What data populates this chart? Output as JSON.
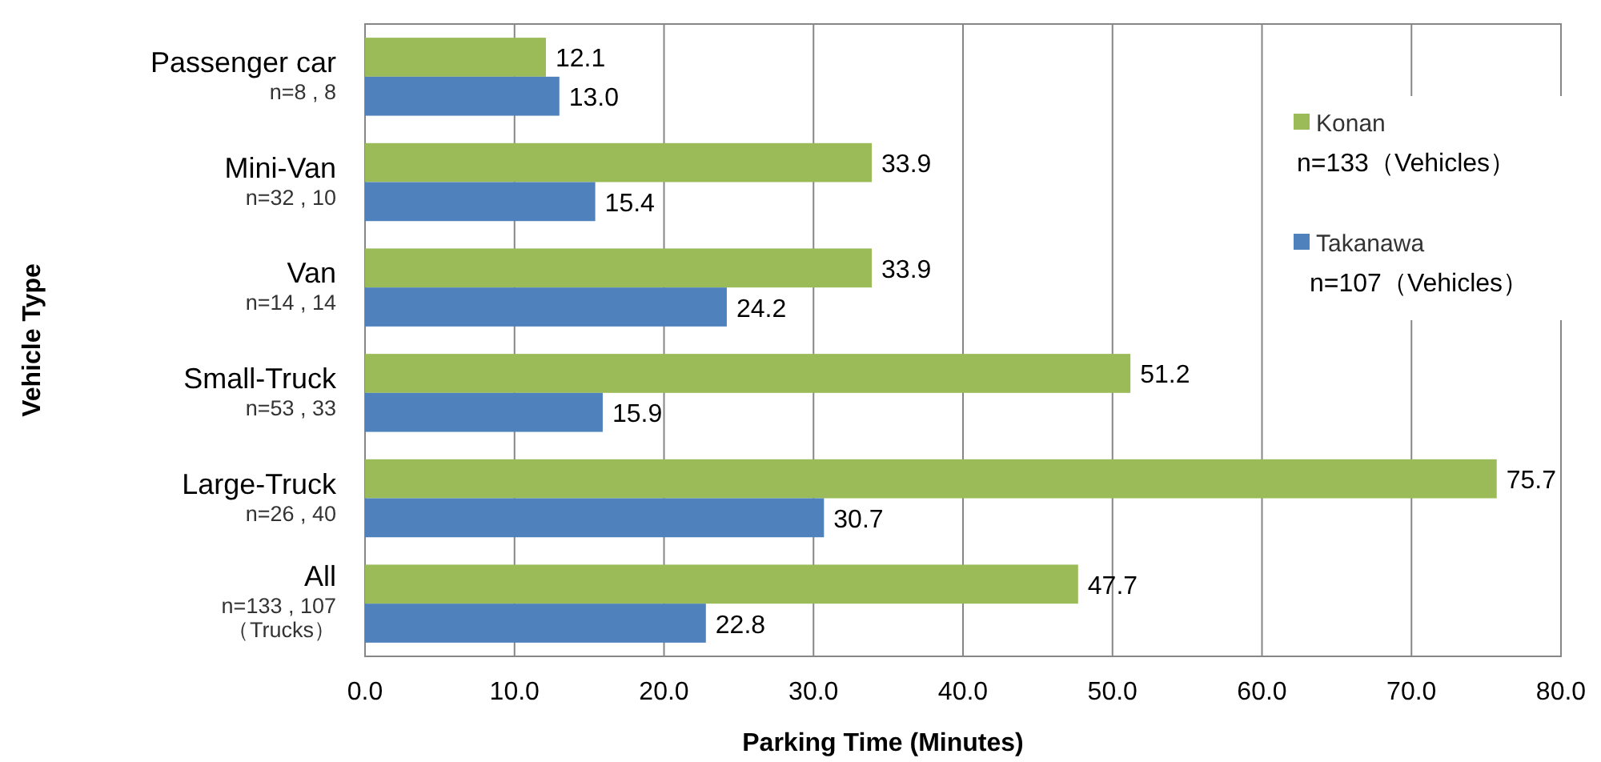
{
  "chart_data": {
    "type": "bar",
    "orientation": "horizontal",
    "xlabel": "Parking Time (Minutes)",
    "ylabel": "Vehicle Type",
    "categories": [
      "Passenger car\nn=8 , 8",
      "Mini-Van\nn=32 , 10",
      "Van\nn=14 , 14",
      "Small-Truck\nn=53 , 33",
      "Large-Truck\nn=26 , 40",
      "All\nn=133 , 107\n（Trucks）"
    ],
    "series": [
      {
        "name": "Konan",
        "color": "#9bbb59",
        "values": [
          12.1,
          33.9,
          33.9,
          51.2,
          75.7,
          47.7
        ],
        "value_labels": [
          "12.1",
          "33.9",
          "33.9",
          "51.2",
          "75.7",
          "47.7"
        ]
      },
      {
        "name": "Takanawa",
        "color": "#4f81bd",
        "values": [
          13.0,
          15.4,
          24.2,
          15.9,
          30.7,
          22.8
        ],
        "value_labels": [
          "13.0",
          "15.4",
          "24.2",
          "15.9",
          "30.7",
          "22.8"
        ]
      }
    ],
    "xlim": [
      0,
      80
    ],
    "xticks": [
      {
        "value": 0,
        "label": "0.0"
      },
      {
        "value": 10,
        "label": "10.0"
      },
      {
        "value": 20,
        "label": "20.0"
      },
      {
        "value": 30,
        "label": "30.0"
      },
      {
        "value": 40,
        "label": "40.0"
      },
      {
        "value": 50,
        "label": "50.0"
      },
      {
        "value": 60,
        "label": "60.0"
      },
      {
        "value": 70,
        "label": "70.0"
      },
      {
        "value": 80,
        "label": "80.0"
      }
    ],
    "grid": "x",
    "legend": "right",
    "annotations": [
      "n=133（Vehicles）",
      "n=107（Vehicles）"
    ]
  }
}
